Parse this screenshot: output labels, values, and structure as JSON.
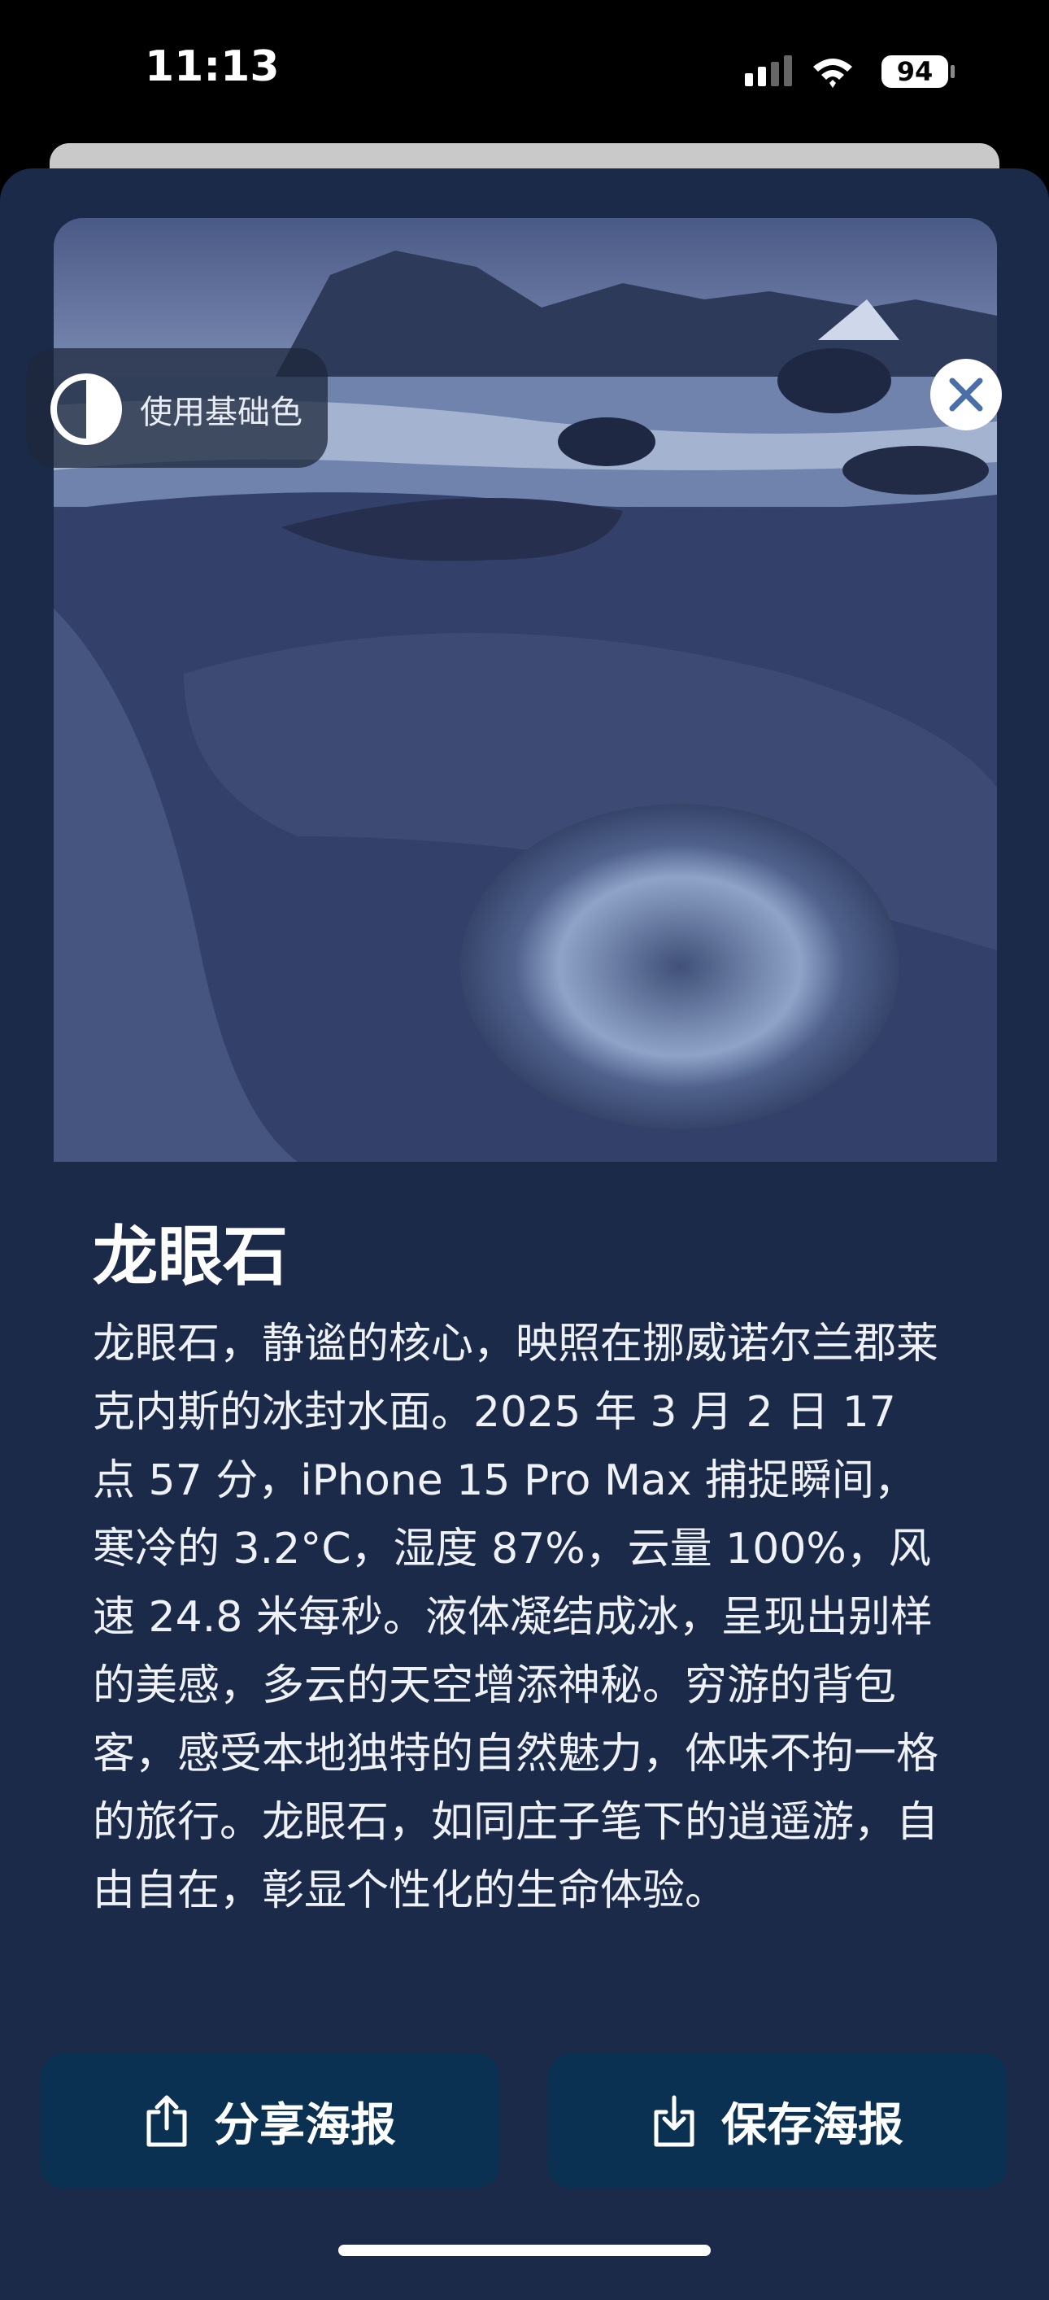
{
  "status_bar": {
    "time": "11:13",
    "battery": "94"
  },
  "badge": {
    "label": "使用基础色"
  },
  "poster": {
    "title": "龙眼石",
    "description": "龙眼石，静谧的核心，映照在挪威诺尔兰郡莱克内斯的冰封水面。2025 年 3 月 2 日 17 点 57 分，iPhone 15 Pro Max 捕捉瞬间，寒冷的 3.2°C，湿度 87%，云量 100%，风速 24.8 米每秒。液体凝结成冰，呈现出别样的美感，多云的天空增添神秘。穷游的背包客，感受本地独特的自然魅力，体味不拘一格的旅行。龙眼石，如同庄子笔下的逍遥游，自由自在，彰显个性化的生命体验。"
  },
  "actions": {
    "share": "分享海报",
    "save": "保存海报"
  }
}
